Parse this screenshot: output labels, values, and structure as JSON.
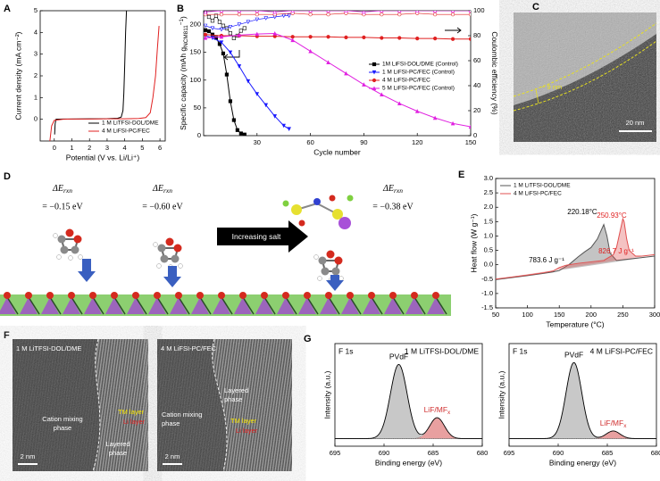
{
  "chart_data": [
    {
      "type": "line",
      "panel": "A",
      "xlabel": "Potential (V vs. Li/Li⁺)",
      "ylabel": "Current density (mA cm⁻²)",
      "xlim": [
        -0.8,
        6.3
      ],
      "xticks": [
        0,
        1,
        2,
        3,
        4,
        5,
        6
      ],
      "ylim": [
        -1,
        5
      ],
      "yticks": [
        0,
        1,
        2,
        3,
        4,
        5
      ],
      "legend": "lower right",
      "series": [
        {
          "name": "1 M LiTFSI-DOL/DME",
          "color": "#000000",
          "x": [
            0.02,
            0.05,
            0.1,
            0.5,
            1,
            2,
            3,
            3.6,
            3.8,
            3.9,
            3.95,
            4.0,
            4.05,
            4.1
          ],
          "values": [
            -0.7,
            -0.2,
            0,
            0.01,
            0.01,
            0.02,
            0.03,
            0.05,
            0.1,
            0.4,
            1.2,
            2.5,
            4.0,
            5.0
          ]
        },
        {
          "name": "4 M LiFSI-PC/FEC",
          "color": "#e02020",
          "x": [
            -0.25,
            -0.15,
            0,
            0.5,
            1,
            2,
            3,
            4,
            4.8,
            5.2,
            5.45,
            5.6,
            5.75,
            5.85,
            5.95
          ],
          "values": [
            -1.0,
            -0.3,
            -0.05,
            0,
            0.01,
            0.01,
            0.02,
            0.02,
            0.04,
            0.08,
            0.3,
            1.0,
            2.0,
            3.2,
            4.3
          ]
        }
      ]
    },
    {
      "type": "line",
      "panel": "B",
      "xlabel": "Cycle number",
      "ylabel": {
        "text": "Specific capacity (mAh g",
        "sub": "NCM811",
        "sup": "−1",
        "end": ")"
      },
      "y2label": "Coulombic efficiency (%)",
      "xlim": [
        0,
        150
      ],
      "xticks": [
        30,
        60,
        90,
        120,
        150
      ],
      "ylim": [
        0,
        225
      ],
      "yticks": [
        0,
        50,
        100,
        150,
        200
      ],
      "y2lim": [
        0,
        100
      ],
      "y2ticks": [
        0,
        20,
        40,
        60,
        80,
        100
      ],
      "legend": "center right",
      "series": [
        {
          "name": "1M LiFSI-DOL/DME (Control)",
          "color": "#000000",
          "marker": "square",
          "x": [
            1,
            3,
            5,
            7,
            9,
            11,
            13,
            15,
            17,
            19,
            21,
            23
          ],
          "values": [
            190,
            188,
            182,
            176,
            165,
            148,
            110,
            62,
            28,
            10,
            4,
            2
          ],
          "ce": [
            98,
            95,
            92,
            96,
            91,
            88,
            86,
            82,
            78,
            80,
            84,
            86
          ]
        },
        {
          "name": "1 M LiFSI-PC/FEC (Control)",
          "color": "#1a1aff",
          "marker": "triangle-down",
          "x": [
            1,
            5,
            10,
            15,
            20,
            25,
            30,
            35,
            40,
            45,
            48
          ],
          "values": [
            180,
            176,
            168,
            150,
            125,
            98,
            75,
            55,
            35,
            18,
            12
          ],
          "ce": [
            88,
            86,
            85,
            87,
            89,
            91,
            93,
            94,
            95,
            96,
            96
          ]
        },
        {
          "name": "4 M LiFSI-PC/FEC",
          "color": "#e02020",
          "marker": "circle",
          "x": [
            1,
            10,
            20,
            30,
            40,
            50,
            60,
            70,
            80,
            90,
            100,
            110,
            120,
            130,
            140,
            150
          ],
          "values": [
            182,
            180,
            180,
            179,
            179,
            178,
            178,
            178,
            177,
            177,
            176,
            176,
            175,
            175,
            174,
            174
          ],
          "ce": [
            97,
            97,
            97,
            97,
            97,
            98,
            97,
            97,
            98,
            97,
            97,
            97,
            98,
            97,
            97,
            97
          ]
        },
        {
          "name": "5 M LiFSI-PC/FEC (Control)",
          "color": "#e020e0",
          "marker": "triangle",
          "x": [
            1,
            10,
            20,
            30,
            40,
            50,
            60,
            70,
            80,
            90,
            100,
            110,
            120,
            130,
            140,
            150
          ],
          "values": [
            176,
            178,
            181,
            183,
            184,
            172,
            152,
            132,
            112,
            92,
            74,
            58,
            44,
            32,
            22,
            16
          ],
          "ce": [
            99,
            100,
            100,
            100,
            99,
            100,
            100,
            100,
            100,
            99,
            100,
            100,
            100,
            100,
            100,
            100
          ]
        }
      ]
    },
    {
      "type": "line",
      "panel": "E",
      "shade": true,
      "xlabel": "Temperature (°C)",
      "ylabel": "Heat flow (W g⁻¹)",
      "xlim": [
        50,
        300
      ],
      "xticks": [
        50,
        100,
        150,
        200,
        250,
        300
      ],
      "ylim": [
        -1.5,
        3.0
      ],
      "yticks": [
        -1.5,
        {
          "value": -1.0,
          "label": "-1.0"
        },
        -0.5,
        {
          "value": 0,
          "label": "0.0"
        },
        0.5,
        {
          "value": 1.0,
          "label": "1.0"
        },
        1.5,
        {
          "value": 2.0,
          "label": "2.0"
        },
        2.5,
        {
          "value": 3.0,
          "label": "3.0"
        }
      ],
      "legend": "upper left",
      "annotations": [
        {
          "text": "220.18°C",
          "color": "#000000"
        },
        {
          "text": "250.93°C",
          "color": "#e02020"
        },
        {
          "text": "783.6 J g⁻¹",
          "color": "#000000"
        },
        {
          "text": "826.7 J g⁻¹",
          "color": "#e02020"
        }
      ],
      "series": [
        {
          "name": "1 M LiTFSI-DOL/DME",
          "color": "#555555",
          "x": [
            50,
            75,
            100,
            125,
            140,
            150,
            165,
            180,
            190,
            200,
            210,
            215,
            220,
            225,
            230,
            240,
            260,
            280,
            300
          ],
          "values": [
            -0.52,
            -0.45,
            -0.38,
            -0.3,
            -0.25,
            -0.2,
            0.0,
            0.28,
            0.45,
            0.6,
            0.9,
            1.15,
            1.4,
            1.0,
            0.4,
            0.15,
            0.2,
            0.25,
            0.3
          ]
        },
        {
          "name": "4 M LiFSI-PC/FEC",
          "color": "#e05050",
          "x": [
            50,
            75,
            100,
            125,
            140,
            150,
            160,
            180,
            200,
            220,
            235,
            240,
            245,
            250,
            252,
            256,
            260,
            270,
            280,
            300
          ],
          "values": [
            -0.5,
            -0.43,
            -0.36,
            -0.28,
            -0.22,
            -0.1,
            -0.02,
            0.05,
            0.1,
            0.15,
            0.35,
            0.6,
            1.1,
            1.6,
            1.5,
            0.9,
            0.5,
            0.3,
            0.3,
            0.35
          ]
        }
      ]
    },
    {
      "type": "spectrum",
      "panel": "G",
      "title": "F 1s",
      "subtitle": "1 M LiTFSI-DOL/DME",
      "xlabel": "Binding energy (eV)",
      "ylabel": "Intensity (a.u.)",
      "xlim": [
        695,
        680
      ],
      "xticks": [
        695,
        690,
        685,
        680
      ],
      "ylim": [
        -8,
        100
      ],
      "peaks": [
        {
          "label": "PVdF",
          "center": 688.5,
          "height": 78,
          "width": 0.85,
          "color": "#c8c8c8",
          "label_color": "#000000"
        },
        {
          "label": {
            "text": "LiF/MF",
            "sub": "x"
          },
          "center": 684.6,
          "height": 22,
          "width": 0.75,
          "color": "#e8a0a0",
          "label_color": "#d03030"
        }
      ]
    },
    {
      "type": "spectrum",
      "title": "F 1s",
      "subtitle": "4 M LiFSI-PC/FEC",
      "xlabel": "Binding energy (eV)",
      "ylabel": "Intensity (a.u.)",
      "xlim": [
        695,
        680
      ],
      "xticks": [
        695,
        690,
        685,
        680
      ],
      "ylim": [
        -8,
        100
      ],
      "peaks": [
        {
          "label": "PVdF",
          "center": 688.4,
          "height": 80,
          "width": 0.8,
          "color": "#c8c8c8",
          "label_color": "#000000"
        },
        {
          "label": {
            "text": "LiF/MF",
            "sub": "x"
          },
          "center": 684.4,
          "height": 8,
          "width": 0.7,
          "color": "#e8a0a0",
          "label_color": "#d03030"
        }
      ]
    }
  ],
  "panel_c": {
    "label": "C",
    "thickness": "~ 9 nm",
    "scale_bar": "20 nm"
  },
  "panel_d": {
    "label": "D",
    "arrow": "Increasing salt",
    "energies": [
      {
        "symbol": {
          "text": "ΔE",
          "sub": "rxn"
        },
        "value": "= −0.15 eV"
      },
      {
        "symbol": {
          "text": "ΔE",
          "sub": "rxn"
        },
        "value": "= −0.60 eV"
      },
      {
        "symbol": {
          "text": "ΔE",
          "sub": "rxn"
        },
        "value": "= −0.38 eV"
      }
    ]
  },
  "panel_f": {
    "label": "F",
    "images": [
      {
        "title": "1 M LiTFSI-DOL/DME",
        "tm_layer": "TM layer",
        "li_layer": "Li layer",
        "mixing": [
          "Cation mixing",
          "phase"
        ],
        "layered": [
          "Layered",
          "phase"
        ],
        "scale_bar": "2 nm"
      },
      {
        "title": "4 M LiFSI-PC/FEC",
        "tm_layer": "TM layer",
        "li_layer": "Li layer",
        "mixing": [
          "Cation mixing",
          "phase"
        ],
        "layered": [
          "Layered",
          "phase"
        ],
        "scale_bar": "2 nm"
      }
    ]
  }
}
